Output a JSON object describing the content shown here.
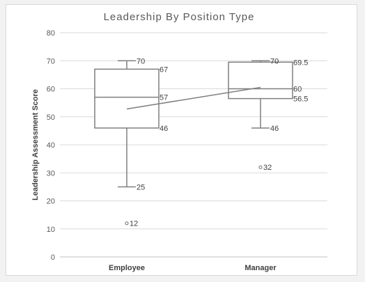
{
  "chart_data": {
    "type": "box",
    "title": "Leadership By Position Type",
    "xlabel": "",
    "ylabel": "Leadership Assessment Score",
    "ylim": [
      0,
      80
    ],
    "yticks": [
      0,
      10,
      20,
      30,
      40,
      50,
      60,
      70,
      80
    ],
    "grid": true,
    "categories": [
      "Employee",
      "Manager"
    ],
    "boxes": [
      {
        "category": "Employee",
        "min": 25,
        "q1": 46,
        "median": 57,
        "q3": 67,
        "max": 70,
        "mean": 52.8,
        "outliers": [
          12
        ],
        "labels": {
          "max": "70",
          "q3": "67",
          "median": "57",
          "q1": "46",
          "min": "25",
          "outlier": "12"
        }
      },
      {
        "category": "Manager",
        "min": 46,
        "q1": 56.5,
        "median": 60,
        "q3": 69.5,
        "max": 70,
        "mean": 60.5,
        "outliers": [
          32
        ],
        "labels": {
          "max": "70",
          "q3": "69.5",
          "median": "60",
          "q1": "56.5",
          "min": "46",
          "outlier": "32"
        }
      }
    ],
    "mean_line": true,
    "colors": {
      "box": "#7f7f7f",
      "grid": "#d9d9d9",
      "axis": "#bfbfbf",
      "text": "#595959"
    }
  }
}
